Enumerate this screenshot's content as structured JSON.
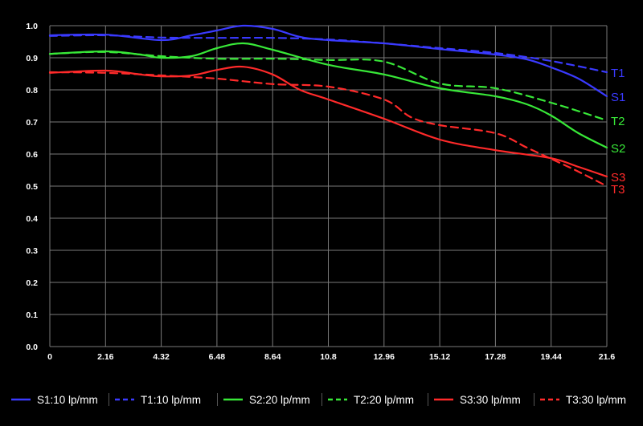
{
  "chart_data": {
    "type": "line",
    "xlim": [
      0,
      21.6
    ],
    "ylim": [
      0,
      1.0
    ],
    "x_ticks": [
      "0",
      "2.16",
      "4.32",
      "6.48",
      "8.64",
      "10.8",
      "12.96",
      "15.12",
      "17.28",
      "19.44",
      "21.6"
    ],
    "y_ticks": [
      "0.0",
      "0.1",
      "0.2",
      "0.3",
      "0.4",
      "0.5",
      "0.6",
      "0.7",
      "0.8",
      "0.9",
      "1.0"
    ],
    "grid": true,
    "legend_position": "bottom",
    "series": [
      {
        "name": "S1:10 lp/mm",
        "end_label": "S1",
        "color": "#3a3aff",
        "dash": false,
        "x": [
          0,
          2.16,
          4.32,
          5.5,
          6.48,
          7.5,
          8.64,
          9.7,
          10.8,
          12.96,
          15.12,
          17.28,
          18.5,
          19.44,
          20.5,
          21.6
        ],
        "y": [
          0.97,
          0.972,
          0.955,
          0.97,
          0.985,
          1.0,
          0.99,
          0.965,
          0.955,
          0.945,
          0.927,
          0.91,
          0.895,
          0.87,
          0.835,
          0.78
        ]
      },
      {
        "name": "T1:10 lp/mm",
        "end_label": "T1",
        "color": "#3a3aff",
        "dash": true,
        "x": [
          0,
          2.16,
          4.32,
          6.48,
          8.64,
          10.8,
          12.96,
          15.12,
          17.28,
          19.44,
          21.6
        ],
        "y": [
          0.968,
          0.97,
          0.963,
          0.962,
          0.962,
          0.957,
          0.945,
          0.93,
          0.915,
          0.89,
          0.855
        ]
      },
      {
        "name": "S2:20 lp/mm",
        "end_label": "S2",
        "color": "#38e838",
        "dash": false,
        "x": [
          0,
          2.16,
          3.5,
          4.32,
          5.5,
          6.48,
          7.5,
          8.64,
          10.8,
          12.96,
          15.12,
          17.28,
          18.5,
          19.44,
          20.5,
          21.6
        ],
        "y": [
          0.912,
          0.92,
          0.91,
          0.9,
          0.905,
          0.93,
          0.945,
          0.925,
          0.878,
          0.848,
          0.805,
          0.78,
          0.755,
          0.72,
          0.665,
          0.62
        ]
      },
      {
        "name": "T2:20 lp/mm",
        "end_label": "T2",
        "color": "#38e838",
        "dash": true,
        "x": [
          0,
          2.16,
          4.32,
          6.48,
          8.64,
          10.8,
          12.96,
          15.12,
          17.28,
          19.44,
          21.6
        ],
        "y": [
          0.912,
          0.918,
          0.905,
          0.897,
          0.897,
          0.893,
          0.888,
          0.82,
          0.805,
          0.76,
          0.705
        ]
      },
      {
        "name": "S3:30 lp/mm",
        "end_label": "S3",
        "color": "#ff2a2a",
        "dash": false,
        "x": [
          0,
          2.16,
          3.5,
          4.32,
          5.5,
          6.48,
          7.5,
          8.64,
          9.7,
          10.8,
          12.96,
          15.12,
          17.28,
          19.44,
          20.5,
          21.6
        ],
        "y": [
          0.853,
          0.86,
          0.848,
          0.842,
          0.845,
          0.862,
          0.872,
          0.848,
          0.8,
          0.77,
          0.71,
          0.645,
          0.612,
          0.587,
          0.56,
          0.53
        ]
      },
      {
        "name": "T3:30 lp/mm",
        "end_label": "T3",
        "color": "#ff2a2a",
        "dash": true,
        "x": [
          0,
          2.16,
          4.32,
          6.48,
          8.64,
          10.8,
          12.96,
          14.0,
          15.12,
          17.28,
          18.5,
          19.44,
          20.5,
          21.6
        ],
        "y": [
          0.855,
          0.853,
          0.845,
          0.835,
          0.818,
          0.81,
          0.77,
          0.715,
          0.69,
          0.665,
          0.62,
          0.585,
          0.545,
          0.5
        ]
      }
    ]
  }
}
